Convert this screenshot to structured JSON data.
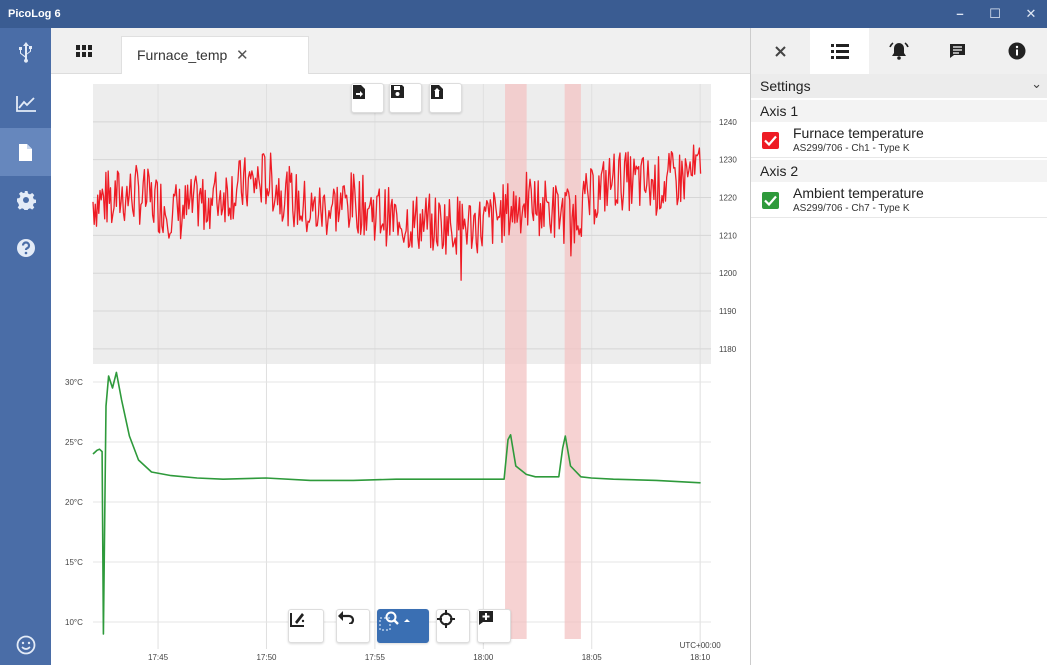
{
  "window": {
    "title": "PicoLog 6",
    "minimize": "–",
    "maximize": "☐",
    "close": "✕"
  },
  "sidebar": {
    "items": [
      {
        "name": "devices",
        "icon": "usb-icon"
      },
      {
        "name": "graph",
        "icon": "chart-line-icon"
      },
      {
        "name": "file",
        "icon": "file-icon",
        "active": true
      },
      {
        "name": "settings",
        "icon": "gear-icon"
      },
      {
        "name": "help",
        "icon": "help-icon"
      },
      {
        "name": "feedback",
        "icon": "smiley-icon"
      }
    ]
  },
  "tabs": {
    "active_label": "Furnace_temp",
    "close": "✕"
  },
  "chart_data": {
    "type": "line",
    "x_label_tz": "UTC+00:00",
    "x_ticks": [
      "17:45",
      "17:50",
      "17:55",
      "18:00",
      "18:05",
      "18:10"
    ],
    "axis1": {
      "ticks": [
        "1240",
        "1230",
        "1220",
        "1210",
        "1200",
        "1190",
        "1180"
      ],
      "ylim": [
        1176,
        1250
      ]
    },
    "axis2": {
      "ticks": [
        "30°C",
        "25°C",
        "20°C",
        "15°C",
        "10°C"
      ],
      "ylim": [
        9,
        31.5
      ]
    },
    "annotation_spans": [
      [
        18.0167,
        18.0333
      ],
      [
        18.0625,
        18.075
      ]
    ],
    "series": [
      {
        "name": "Furnace temperature",
        "axis": 1,
        "color": "#ee1c25",
        "x": [
          17.7,
          17.733,
          17.767,
          17.8,
          17.833,
          17.867,
          17.9,
          17.933,
          17.967,
          18.0,
          18.033,
          18.067,
          18.1,
          18.133,
          18.167
        ],
        "y": [
          1219,
          1221,
          1216,
          1221,
          1225,
          1216,
          1219,
          1214,
          1213,
          1213,
          1219,
          1215,
          1225,
          1223,
          1227
        ]
      },
      {
        "name": "Ambient temperature",
        "axis": 2,
        "color": "#2e9a3b",
        "x": [
          17.7,
          17.702,
          17.703,
          17.705,
          17.707,
          17.708,
          17.71,
          17.712,
          17.715,
          17.718,
          17.722,
          17.728,
          17.735,
          17.745,
          17.76,
          17.78,
          17.8,
          17.833,
          17.867,
          17.9,
          17.933,
          17.967,
          18.0,
          18.016,
          18.019,
          18.021,
          18.025,
          18.033,
          18.04,
          18.058,
          18.061,
          18.063,
          18.067,
          18.075,
          18.083,
          18.1,
          18.133,
          18.167
        ],
        "y": [
          24.0,
          24.2,
          24.3,
          24.4,
          24.2,
          9.0,
          28.0,
          30.5,
          29.5,
          30.8,
          28.5,
          25.5,
          23.5,
          22.5,
          22.2,
          22.0,
          21.9,
          22.0,
          21.8,
          21.8,
          21.9,
          21.9,
          21.9,
          21.9,
          25.2,
          25.6,
          23.0,
          22.3,
          22.1,
          22.1,
          24.5,
          25.5,
          23.0,
          22.1,
          22.0,
          21.9,
          21.8,
          21.6
        ]
      }
    ]
  },
  "file_toolbar": [
    "export-file-icon",
    "save-icon",
    "export-data-icon"
  ],
  "graph_toolbar": [
    "annotate-icon",
    "undo-icon",
    "zoom-icon",
    "crosshair-icon",
    "add-note-icon"
  ],
  "panel": {
    "tabs": [
      "close-icon",
      "channel-list-icon",
      "alarm-bell-icon",
      "notes-icon",
      "info-icon"
    ],
    "settings_label": "Settings",
    "axis1_label": "Axis 1",
    "axis2_label": "Axis 2",
    "channels": [
      {
        "name": "Furnace temperature",
        "detail": "AS299/706 - Ch1 - Type K",
        "color": "#ee1c25"
      },
      {
        "name": "Ambient temperature",
        "detail": "AS299/706 - Ch7 - Type K",
        "color": "#2e9a3b"
      }
    ]
  }
}
